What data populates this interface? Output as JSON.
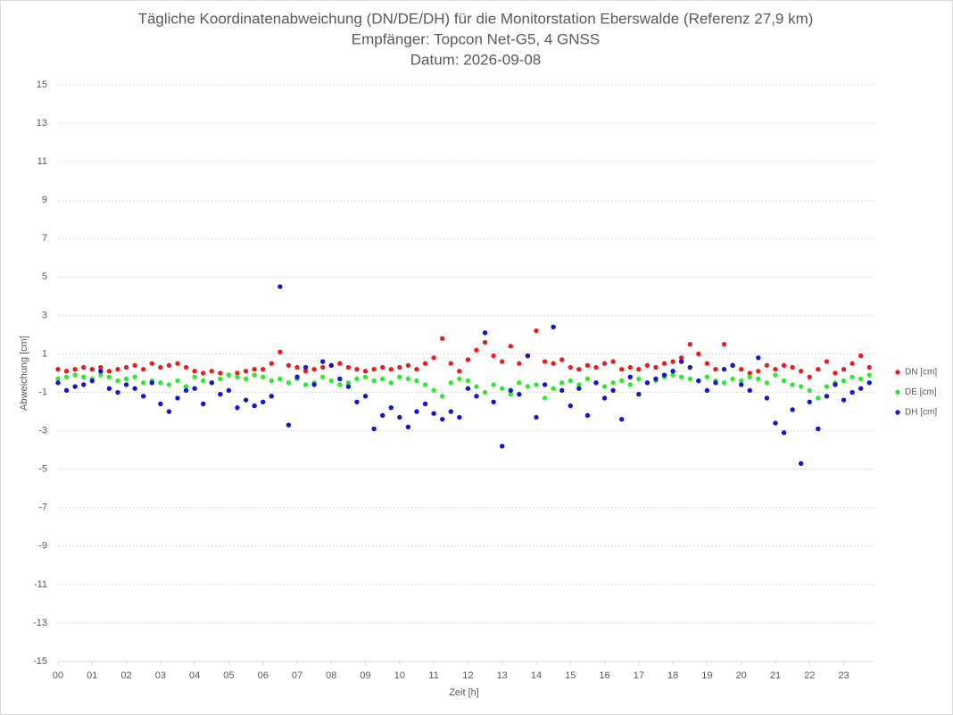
{
  "chart_data": {
    "type": "scatter",
    "title": "Tägliche Koordinatenabweichung (DN/DE/DH) für die Monitorstation Eberswalde (Referenz 27,9 km)",
    "subtitle": "Empfänger: Topcon Net-G5, 4 GNSS",
    "date_label": "Datum: 2026-09-08",
    "x_label": "Zeit [h]",
    "y_label": "Abweichung [cm]",
    "xlim": [
      0,
      23.9
    ],
    "ylim": [
      -15,
      15
    ],
    "xticks": [
      {
        "value": 0,
        "label": "00"
      },
      {
        "value": 1,
        "label": "01"
      },
      {
        "value": 2,
        "label": "02"
      },
      {
        "value": 3,
        "label": "03"
      },
      {
        "value": 4,
        "label": "04"
      },
      {
        "value": 5,
        "label": "05"
      },
      {
        "value": 6,
        "label": "06"
      },
      {
        "value": 7,
        "label": "07"
      },
      {
        "value": 8,
        "label": "08"
      },
      {
        "value": 9,
        "label": "09"
      },
      10,
      11,
      12,
      13,
      14,
      15,
      16,
      17,
      18,
      19,
      20,
      21,
      22,
      23
    ],
    "yticks": [
      -15,
      -13,
      -11,
      -9,
      -7,
      -5,
      -3,
      -1,
      1,
      3,
      5,
      7,
      9,
      11,
      13,
      15
    ],
    "grid": true,
    "legend": "right",
    "x": [
      0,
      0.25,
      0.5,
      0.75,
      1,
      1.25,
      1.5,
      1.75,
      2,
      2.25,
      2.5,
      2.75,
      3,
      3.25,
      3.5,
      3.75,
      4,
      4.25,
      4.5,
      4.75,
      5,
      5.25,
      5.5,
      5.75,
      6,
      6.25,
      6.5,
      6.75,
      7,
      7.25,
      7.5,
      7.75,
      8,
      8.25,
      8.5,
      8.75,
      9,
      9.25,
      9.5,
      9.75,
      10,
      10.25,
      10.5,
      10.75,
      11,
      11.25,
      11.5,
      11.75,
      12,
      12.25,
      12.5,
      12.75,
      13,
      13.25,
      13.5,
      13.75,
      14,
      14.25,
      14.5,
      14.75,
      15,
      15.25,
      15.5,
      15.75,
      16,
      16.25,
      16.5,
      16.75,
      17,
      17.25,
      17.5,
      17.75,
      18,
      18.25,
      18.5,
      18.75,
      19,
      19.25,
      19.5,
      19.75,
      20,
      20.25,
      20.5,
      20.75,
      21,
      21.25,
      21.5,
      21.75,
      22,
      22.25,
      22.5,
      22.75,
      23,
      23.25,
      23.5,
      23.75
    ],
    "series": [
      {
        "name": "DN [cm]",
        "color": "#ee1c1c",
        "values": [
          0.2,
          0.1,
          0.2,
          0.3,
          0.2,
          0.3,
          0.1,
          0.2,
          0.3,
          0.4,
          0.2,
          0.5,
          0.3,
          0.4,
          0.5,
          0.3,
          0.1,
          0.0,
          0.1,
          0.0,
          -0.1,
          0.0,
          0.1,
          0.2,
          0.2,
          0.5,
          1.1,
          0.4,
          0.3,
          0.1,
          0.2,
          0.3,
          0.4,
          0.5,
          0.3,
          0.2,
          0.1,
          0.2,
          0.3,
          0.2,
          0.3,
          0.4,
          0.2,
          0.5,
          0.8,
          1.8,
          0.5,
          0.1,
          0.7,
          1.2,
          1.6,
          0.9,
          0.6,
          1.4,
          0.5,
          0.9,
          2.2,
          0.6,
          0.5,
          0.7,
          0.3,
          0.2,
          0.4,
          0.3,
          0.5,
          0.6,
          0.2,
          0.3,
          0.2,
          0.4,
          0.3,
          0.5,
          0.6,
          0.8,
          1.5,
          1.0,
          0.5,
          0.2,
          1.5,
          0.4,
          0.2,
          0.0,
          0.1,
          0.4,
          0.2,
          0.4,
          0.3,
          0.1,
          -0.2,
          0.2,
          0.6,
          0.0,
          0.2,
          0.5,
          0.9,
          0.3
        ]
      },
      {
        "name": "DE [cm]",
        "color": "#2fe82f",
        "values": [
          -0.3,
          -0.2,
          -0.1,
          -0.2,
          -0.3,
          -0.1,
          -0.2,
          -0.4,
          -0.3,
          -0.2,
          -0.5,
          -0.4,
          -0.5,
          -0.6,
          -0.4,
          -0.7,
          -0.2,
          -0.4,
          -0.5,
          -0.3,
          -0.1,
          -0.2,
          -0.3,
          -0.1,
          -0.2,
          -0.4,
          -0.3,
          -0.5,
          -0.3,
          -0.6,
          -0.5,
          -0.2,
          -0.4,
          -0.6,
          -0.5,
          -0.3,
          -0.2,
          -0.4,
          -0.3,
          -0.5,
          -0.2,
          -0.3,
          -0.4,
          -0.6,
          -0.9,
          -1.2,
          -0.5,
          -0.3,
          -0.4,
          -0.7,
          -1.0,
          -0.6,
          -0.8,
          -1.1,
          -0.5,
          -0.7,
          -0.6,
          -1.3,
          -0.8,
          -0.5,
          -0.4,
          -0.6,
          -0.3,
          -0.5,
          -0.7,
          -0.5,
          -0.4,
          -0.6,
          -0.3,
          -0.5,
          -0.4,
          -0.2,
          -0.1,
          -0.2,
          -0.3,
          -0.4,
          -0.2,
          -0.4,
          -0.5,
          -0.3,
          -0.4,
          -0.2,
          -0.3,
          -0.5,
          -0.1,
          -0.4,
          -0.6,
          -0.7,
          -0.9,
          -1.3,
          -0.7,
          -0.5,
          -0.4,
          -0.2,
          -0.3,
          -0.1
        ]
      },
      {
        "name": "DH [cm]",
        "color": "#1414d6",
        "values": [
          -0.5,
          -0.9,
          -0.7,
          -0.6,
          -0.4,
          0.1,
          -0.8,
          -1.0,
          -0.6,
          -0.8,
          -1.2,
          -0.5,
          -1.6,
          -2.0,
          -1.3,
          -0.9,
          -0.8,
          -1.6,
          -0.5,
          -1.1,
          -0.9,
          -1.8,
          -1.4,
          -1.7,
          -1.5,
          -1.2,
          4.5,
          -2.7,
          -0.2,
          0.3,
          -0.6,
          0.6,
          0.4,
          -0.3,
          -0.7,
          -1.5,
          -1.2,
          -2.9,
          -2.2,
          -1.8,
          -2.3,
          -2.8,
          -2.0,
          -1.6,
          -2.1,
          -2.4,
          -2.0,
          -2.3,
          -0.8,
          -1.2,
          2.1,
          -1.5,
          -3.8,
          -0.9,
          -1.1,
          0.9,
          -2.3,
          -0.6,
          2.4,
          -0.9,
          -1.7,
          -0.8,
          -2.2,
          -0.5,
          -1.3,
          -0.9,
          -2.4,
          -0.2,
          -1.1,
          -0.5,
          -0.3,
          -0.1,
          0.1,
          0.6,
          0.3,
          -0.4,
          -0.9,
          -0.5,
          0.2,
          0.4,
          -0.6,
          -0.9,
          0.8,
          -1.3,
          -2.6,
          -3.1,
          -1.9,
          -4.7,
          -1.5,
          -2.9,
          -1.2,
          -0.6,
          -1.4,
          -1.0,
          -0.8,
          -0.5
        ]
      }
    ]
  }
}
